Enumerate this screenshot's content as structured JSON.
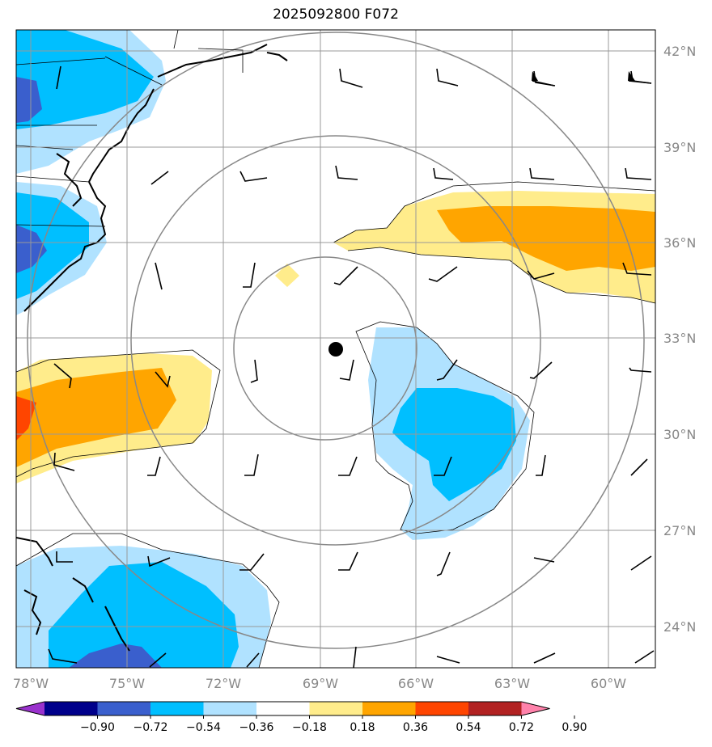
{
  "title": "2025092800 F072",
  "lat_labels": [
    "42°N",
    "39°N",
    "36°N",
    "33°N",
    "30°N",
    "27°N",
    "24°N"
  ],
  "lon_labels": [
    "78°W",
    "75°W",
    "72°W",
    "69°W",
    "66°W",
    "63°W",
    "60°W"
  ],
  "colorbar": {
    "ticks": [
      "−0.90",
      "−0.72",
      "−0.54",
      "−0.36",
      "−0.18",
      "0.18",
      "0.36",
      "0.54",
      "0.72",
      "0.90"
    ],
    "colors": [
      "#9a32cd",
      "#00008b",
      "#3a5fcd",
      "#00bfff",
      "#b0e2ff",
      "#ffffff",
      "#ffec8b",
      "#ffa500",
      "#ff4500",
      "#b22222",
      "#ff82ab"
    ]
  },
  "fill_colors": {
    "light_blue": "#b0e2ff",
    "blue": "#00bfff",
    "dark_blue": "#3a5fcd",
    "light_yellow": "#ffec8b",
    "orange": "#ffa500",
    "red": "#ff4500"
  },
  "center_marker": "black-dot",
  "legend_labels_note": "",
  "map": {
    "lon_range": [
      -78.5,
      -58.5
    ],
    "lat_range": [
      22.7,
      42.7
    ],
    "grid": true,
    "range_rings": 3
  }
}
